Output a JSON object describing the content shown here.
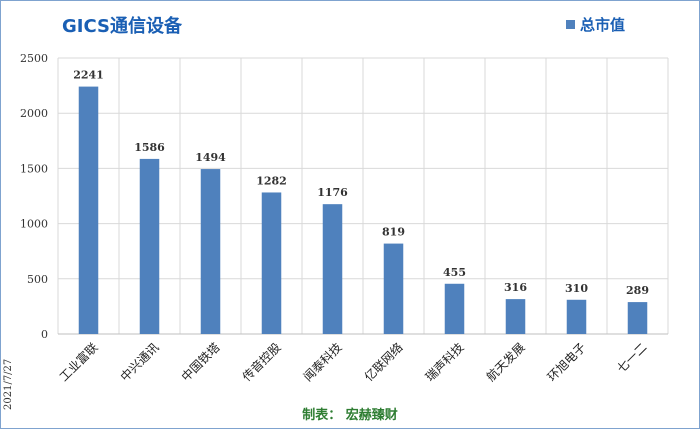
{
  "title": "GICS通信设备",
  "legend_label": "总市值",
  "date_label": "2021/7/27",
  "footer": "制表：  宏赫臻财",
  "colors": {
    "bar": "#4f81bd",
    "title": "#1a5fb4",
    "footer": "#2e7d32"
  },
  "chart_data": {
    "type": "bar",
    "title": "GICS通信设备",
    "categories": [
      "工业富联",
      "中兴通讯",
      "中国铁塔",
      "传音控股",
      "闻泰科技",
      "亿联网络",
      "瑞声科技",
      "航天发展",
      "环旭电子",
      "七一二"
    ],
    "series": [
      {
        "name": "总市值",
        "values": [
          2241,
          1586,
          1494,
          1282,
          1176,
          819,
          455,
          316,
          310,
          289
        ]
      }
    ],
    "ylim": [
      0,
      2500
    ],
    "yticks": [
      0,
      500,
      1000,
      1500,
      2000,
      2500
    ],
    "grid": true,
    "legend": "top-right",
    "data_labels": true
  }
}
